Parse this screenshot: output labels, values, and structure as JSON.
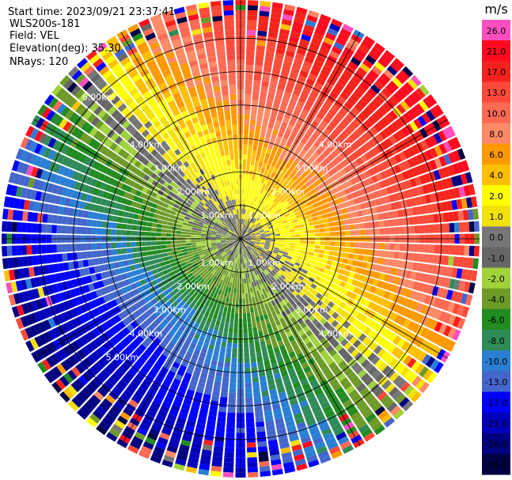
{
  "info": {
    "start_time": "Start time: 2023/09/21 23:37:41",
    "instrument": "WLS200s-181",
    "field": "Field: VEL",
    "elevation": "Elevation(deg): 35.30",
    "nrays": "NRays: 120"
  },
  "colorbar": {
    "unit": "m/s",
    "bins": [
      {
        "label": "26.0",
        "color": "#ff4fbf"
      },
      {
        "label": "21.0",
        "color": "#ff0a1e"
      },
      {
        "label": "17.0",
        "color": "#f5221b"
      },
      {
        "label": "13.0",
        "color": "#ff4a3a"
      },
      {
        "label": "10.0",
        "color": "#ff6a55"
      },
      {
        "label": "8.0",
        "color": "#ff8a66"
      },
      {
        "label": "6.0",
        "color": "#ff9900"
      },
      {
        "label": "4.0",
        "color": "#ffbf00"
      },
      {
        "label": "2.0",
        "color": "#ffff00"
      },
      {
        "label": "1.0",
        "color": "#f2e10a"
      },
      {
        "label": "0.0",
        "color": "#777777"
      },
      {
        "label": "-1.0",
        "color": "#666666"
      },
      {
        "label": "-2.0",
        "color": "#a0d23c"
      },
      {
        "label": "-4.0",
        "color": "#6e9a28"
      },
      {
        "label": "-6.0",
        "color": "#228b22"
      },
      {
        "label": "-8.0",
        "color": "#2e8b57"
      },
      {
        "label": "-10.0",
        "color": "#2a7fd4"
      },
      {
        "label": "-13.0",
        "color": "#4466cc"
      },
      {
        "label": "-17.0",
        "color": "#0000ff"
      },
      {
        "label": "-21.0",
        "color": "#0000bb"
      },
      {
        "label": "-26.0",
        "color": "#000080"
      },
      {
        "label": "-30.0",
        "color": "#000044"
      }
    ]
  },
  "chart_data": {
    "type": "heatmap",
    "projection": "polar PPI",
    "field": "VEL",
    "units": "m/s",
    "nrays": 120,
    "range_rings_km": [
      1,
      2,
      3,
      4,
      5,
      6
    ],
    "spoke_angles_deg": [
      0,
      30,
      60,
      90,
      120,
      150,
      180,
      210,
      240,
      270,
      300,
      330
    ],
    "ring_labels": [
      {
        "text": "1.00km",
        "angle_deg": 45,
        "ring_km": 1
      },
      {
        "text": "1.00km",
        "angle_deg": 135,
        "ring_km": 1
      },
      {
        "text": "1.00km",
        "angle_deg": 225,
        "ring_km": 1
      },
      {
        "text": "1.00km",
        "angle_deg": 315,
        "ring_km": 1
      },
      {
        "text": "2.00km",
        "angle_deg": 45,
        "ring_km": 2
      },
      {
        "text": "2.00km",
        "angle_deg": 135,
        "ring_km": 2
      },
      {
        "text": "2.00km",
        "angle_deg": 225,
        "ring_km": 2
      },
      {
        "text": "2.00km",
        "angle_deg": 315,
        "ring_km": 2
      },
      {
        "text": "3.00km",
        "angle_deg": 45,
        "ring_km": 3
      },
      {
        "text": "3.00km",
        "angle_deg": 135,
        "ring_km": 3
      },
      {
        "text": "3.00km",
        "angle_deg": 225,
        "ring_km": 3
      },
      {
        "text": "3.00km",
        "angle_deg": 315,
        "ring_km": 3
      },
      {
        "text": "4.00km",
        "angle_deg": 45,
        "ring_km": 4
      },
      {
        "text": "4.00km",
        "angle_deg": 135,
        "ring_km": 4
      },
      {
        "text": "4.00km",
        "angle_deg": 225,
        "ring_km": 4
      },
      {
        "text": "4.00km",
        "angle_deg": 315,
        "ring_km": 4
      },
      {
        "text": "5.00km",
        "angle_deg": 225,
        "ring_km": 5
      },
      {
        "text": "6.00km",
        "angle_deg": 315,
        "ring_km": 6
      }
    ],
    "max_range_km": 7.1,
    "velocity_pattern": {
      "description_sectors": "positive (red/orange) toward north-east, negative (blue/green) toward south-west, near-zero (gray/yellow) ring around center",
      "positive_peak_azimuth_deg": 45,
      "negative_peak_azimuth_deg": 225,
      "max_abs_velocity": 26.0
    }
  }
}
